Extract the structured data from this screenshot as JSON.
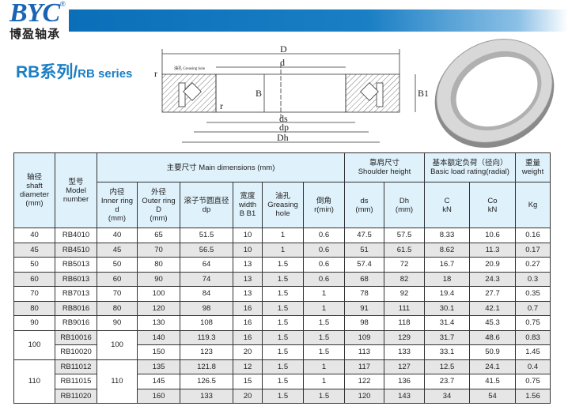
{
  "brand": {
    "logo": "BYC",
    "registered": "®",
    "name_cn": "博盈轴承",
    "color": "#1a64b4"
  },
  "title": {
    "cn": "RB系列/",
    "en": "RB series"
  },
  "diagram": {
    "labels": {
      "D": "D",
      "d": "d",
      "grease": "油孔 Greasing hole",
      "r1": "r",
      "r2": "r",
      "B": "B",
      "B1": "B1",
      "ds": "ds",
      "dp": "dp",
      "Dh": "Dh"
    }
  },
  "table": {
    "headers": {
      "shaft": [
        "轴径",
        "shaft",
        "diameter",
        "(mm)"
      ],
      "model": [
        "型号",
        "Model",
        "number"
      ],
      "main": "主要尺寸 Main dimensions (mm)",
      "shoulder": [
        "靠肩尺寸",
        "Shoulder height"
      ],
      "load": [
        "基本额定负荷（径向）",
        "Basic load rating(radial)"
      ],
      "weight": [
        "重量",
        "weight"
      ],
      "d": [
        "内径",
        "Inner ring",
        "d",
        "(mm)"
      ],
      "D": [
        "外径",
        "Outer ring",
        "D",
        "(mm)"
      ],
      "dp": [
        "滚子节圆直径",
        "dp"
      ],
      "B": [
        "宽度",
        "width",
        "B B1"
      ],
      "grease": [
        "油孔",
        "Greasing",
        "hole"
      ],
      "r": [
        "倒角",
        "r(min)"
      ],
      "ds": [
        "ds",
        "(mm)"
      ],
      "Dh": [
        "Dh",
        "(mm)"
      ],
      "C": [
        "C",
        "kN"
      ],
      "Co": [
        "Co",
        "kN"
      ],
      "kg": "Kg"
    },
    "rows": [
      [
        "40",
        "RB4010",
        "40",
        "65",
        "51.5",
        "10",
        "1",
        "0.6",
        "47.5",
        "57.5",
        "8.33",
        "10.6",
        "0.16"
      ],
      [
        "45",
        "RB4510",
        "45",
        "70",
        "56.5",
        "10",
        "1",
        "0.6",
        "51",
        "61.5",
        "8.62",
        "11.3",
        "0.17"
      ],
      [
        "50",
        "RB5013",
        "50",
        "80",
        "64",
        "13",
        "1.5",
        "0.6",
        "57.4",
        "72",
        "16.7",
        "20.9",
        "0.27"
      ],
      [
        "60",
        "RB6013",
        "60",
        "90",
        "74",
        "13",
        "1.5",
        "0.6",
        "68",
        "82",
        "18",
        "24.3",
        "0.3"
      ],
      [
        "70",
        "RB7013",
        "70",
        "100",
        "84",
        "13",
        "1.5",
        "1",
        "78",
        "92",
        "19.4",
        "27.7",
        "0.35"
      ],
      [
        "80",
        "RB8016",
        "80",
        "120",
        "98",
        "16",
        "1.5",
        "1",
        "91",
        "111",
        "30.1",
        "42.1",
        "0.7"
      ],
      [
        "90",
        "RB9016",
        "90",
        "130",
        "108",
        "16",
        "1.5",
        "1.5",
        "98",
        "118",
        "31.4",
        "45.3",
        "0.75"
      ],
      [
        "100",
        "RB10016",
        "100",
        "140",
        "119.3",
        "16",
        "1.5",
        "1.5",
        "109",
        "129",
        "31.7",
        "48.6",
        "0.83"
      ],
      [
        "100",
        "RB10020",
        "100",
        "150",
        "123",
        "20",
        "1.5",
        "1.5",
        "113",
        "133",
        "33.1",
        "50.9",
        "1.45"
      ],
      [
        "110",
        "RB11012",
        "110",
        "135",
        "121.8",
        "12",
        "1.5",
        "1",
        "117",
        "127",
        "12.5",
        "24.1",
        "0.4"
      ],
      [
        "110",
        "RB11015",
        "110",
        "145",
        "126.5",
        "15",
        "1.5",
        "1",
        "122",
        "136",
        "23.7",
        "41.5",
        "0.75"
      ],
      [
        "110",
        "RB11020",
        "110",
        "160",
        "133",
        "20",
        "1.5",
        "1.5",
        "120",
        "143",
        "34",
        "54",
        "1.56"
      ]
    ]
  }
}
